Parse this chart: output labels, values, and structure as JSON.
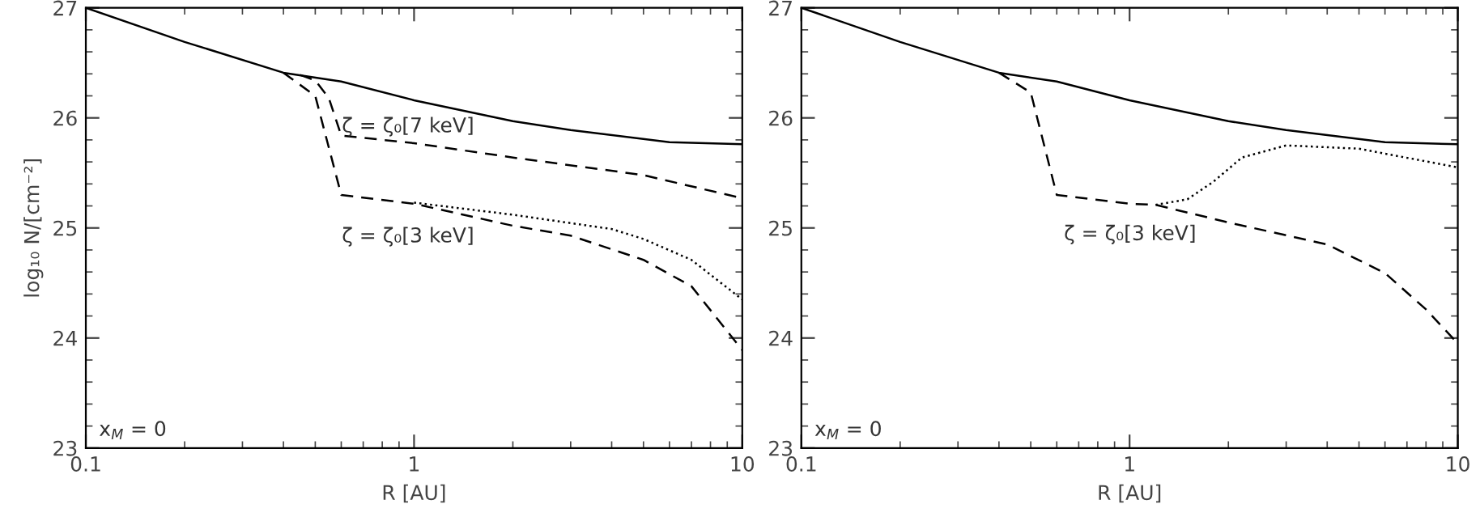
{
  "chart_data": [
    {
      "type": "line",
      "xlabel": "R [AU]",
      "ylabel": "log₁₀ N/[cm⁻²]",
      "log": "x",
      "xlim": [
        0.1,
        10
      ],
      "ylim": [
        23,
        27
      ],
      "xticks": [
        0.1,
        1,
        10
      ],
      "yticks": [
        23,
        24,
        25,
        26,
        27
      ],
      "grid": false,
      "marker": "none",
      "annotations": [
        "ζ = ζ₀[7 keV]",
        "ζ = ζ₀[3 keV]",
        "x$_{M}$ = 0"
      ],
      "series": [
        {
          "color": "#000000",
          "line_style": "solid",
          "x": [
            0.1,
            0.2,
            0.4,
            0.6,
            1,
            2,
            3,
            6,
            10
          ],
          "values": [
            27.0,
            26.69,
            26.41,
            26.33,
            26.16,
            25.97,
            25.89,
            25.78,
            25.76
          ]
        },
        {
          "color": "#000000",
          "line_style": "dashed",
          "x": [
            0.45,
            0.5,
            0.55,
            0.6,
            1,
            2,
            5,
            10
          ],
          "values": [
            26.39,
            26.34,
            26.18,
            25.84,
            25.77,
            25.64,
            25.48,
            25.27
          ]
        },
        {
          "color": "#000000",
          "line_style": "dashed",
          "x": [
            0.4,
            0.5,
            0.6,
            1,
            2,
            3,
            5,
            7,
            10
          ],
          "values": [
            26.41,
            26.2,
            25.3,
            25.22,
            25.02,
            24.93,
            24.71,
            24.47,
            23.89
          ]
        },
        {
          "color": "#000000",
          "line_style": "dotted",
          "x": [
            1,
            2,
            4,
            5,
            7,
            10
          ],
          "values": [
            25.23,
            25.12,
            24.99,
            24.9,
            24.71,
            24.35
          ]
        }
      ]
    },
    {
      "type": "line",
      "xlabel": "R [AU]",
      "log": "x",
      "xlim": [
        0.1,
        10
      ],
      "ylim": [
        23,
        27
      ],
      "xticks": [
        0.1,
        1,
        10
      ],
      "yticks": [
        23,
        24,
        25,
        26,
        27
      ],
      "grid": false,
      "marker": "none",
      "annotations": [
        "ζ = ζ₀[3 keV]",
        "x$_{M}$ = 0"
      ],
      "series": [
        {
          "color": "#000000",
          "line_style": "solid",
          "x": [
            0.1,
            0.2,
            0.4,
            0.6,
            1,
            2,
            3,
            6,
            10
          ],
          "values": [
            27.0,
            26.69,
            26.41,
            26.33,
            26.16,
            25.97,
            25.89,
            25.78,
            25.76
          ]
        },
        {
          "color": "#000000",
          "line_style": "dashed",
          "x": [
            0.4,
            0.5,
            0.6,
            1,
            1.2,
            2,
            4,
            6,
            8,
            10
          ],
          "values": [
            26.41,
            26.23,
            25.3,
            25.22,
            25.21,
            25.05,
            24.85,
            24.59,
            24.26,
            23.95
          ]
        },
        {
          "color": "#000000",
          "line_style": "dotted",
          "x": [
            1.2,
            1.5,
            1.8,
            2.2,
            3,
            5,
            10
          ],
          "values": [
            25.21,
            25.26,
            25.42,
            25.64,
            25.75,
            25.72,
            25.55
          ]
        }
      ]
    }
  ]
}
